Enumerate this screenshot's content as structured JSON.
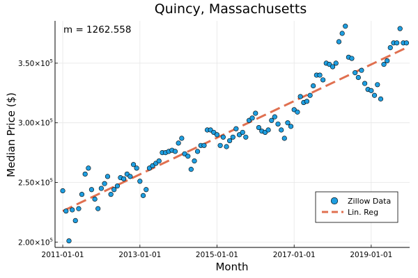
{
  "chart_data": {
    "type": "scatter",
    "title": "Quincy, Massachusetts",
    "xlabel": "Month",
    "ylabel": "Median Price ($)",
    "annotation": "m = 1262.558",
    "x_ticks": [
      "2011-01-01",
      "2013-01-01",
      "2015-01-01",
      "2017-01-01",
      "2019-01-01"
    ],
    "y_ticks": [
      {
        "value": 200000,
        "mantissa": "2.00×10",
        "exponent": "5"
      },
      {
        "value": 250000,
        "mantissa": "2.50×10",
        "exponent": "5"
      },
      {
        "value": 300000,
        "mantissa": "3.00×10",
        "exponent": "5"
      },
      {
        "value": 350000,
        "mantissa": "3.50×10",
        "exponent": "5"
      }
    ],
    "xlim": [
      "2010-10-20",
      "2019-12-31"
    ],
    "ylim": [
      195500,
      385500
    ],
    "grid": true,
    "legend_position": "bottom-right",
    "colors": {
      "points": "#1f9ee0",
      "point_edge": "#000000",
      "regression": "#e07050"
    },
    "series": [
      {
        "name": "Zillow Data",
        "kind": "scatter",
        "x": [
          "2011-01",
          "2011-02",
          "2011-03",
          "2011-04",
          "2011-05",
          "2011-06",
          "2011-07",
          "2011-08",
          "2011-09",
          "2011-10",
          "2011-11",
          "2011-12",
          "2012-01",
          "2012-02",
          "2012-03",
          "2012-04",
          "2012-05",
          "2012-06",
          "2012-07",
          "2012-08",
          "2012-09",
          "2012-10",
          "2012-11",
          "2012-12",
          "2013-01",
          "2013-02",
          "2013-03",
          "2013-04",
          "2013-05",
          "2013-06",
          "2013-07",
          "2013-08",
          "2013-09",
          "2013-10",
          "2013-11",
          "2013-12",
          "2014-01",
          "2014-02",
          "2014-03",
          "2014-04",
          "2014-05",
          "2014-06",
          "2014-07",
          "2014-08",
          "2014-09",
          "2014-10",
          "2014-11",
          "2014-12",
          "2015-01",
          "2015-02",
          "2015-03",
          "2015-04",
          "2015-05",
          "2015-06",
          "2015-07",
          "2015-08",
          "2015-09",
          "2015-10",
          "2015-11",
          "2015-12",
          "2016-01",
          "2016-02",
          "2016-03",
          "2016-04",
          "2016-05",
          "2016-06",
          "2016-07",
          "2016-08",
          "2016-09",
          "2016-10",
          "2016-11",
          "2016-12",
          "2017-01",
          "2017-02",
          "2017-03",
          "2017-04",
          "2017-05",
          "2017-06",
          "2017-07",
          "2017-08",
          "2017-09",
          "2017-10",
          "2017-11",
          "2017-12",
          "2018-01",
          "2018-02",
          "2018-03",
          "2018-04",
          "2018-05",
          "2018-06",
          "2018-07",
          "2018-08",
          "2018-09",
          "2018-10",
          "2018-11",
          "2018-12",
          "2019-01",
          "2019-02",
          "2019-03",
          "2019-04",
          "2019-05",
          "2019-06",
          "2019-07",
          "2019-08",
          "2019-09",
          "2019-10",
          "2019-11",
          "2019-12"
        ],
        "y": [
          243000,
          226000,
          201000,
          227000,
          218000,
          228000,
          240000,
          257000,
          262000,
          244000,
          236000,
          228000,
          245000,
          249000,
          255000,
          240000,
          244000,
          247000,
          254000,
          253000,
          257000,
          255000,
          265000,
          262000,
          251000,
          239000,
          244000,
          262000,
          264000,
          266000,
          268000,
          275000,
          275000,
          276000,
          277000,
          276000,
          283000,
          287000,
          274000,
          272000,
          261000,
          268000,
          276000,
          281000,
          281000,
          294000,
          294000,
          292000,
          290000,
          281000,
          288000,
          280000,
          285000,
          288000,
          295000,
          290000,
          292000,
          288000,
          302000,
          304000,
          308000,
          296000,
          293000,
          292000,
          294000,
          302000,
          305000,
          299000,
          294000,
          287000,
          300000,
          297000,
          311000,
          309000,
          322000,
          317000,
          318000,
          323000,
          331000,
          340000,
          340000,
          336000,
          350000,
          349000,
          347000,
          350000,
          368000,
          375000,
          381000,
          355000,
          354000,
          342000,
          338000,
          344000,
          333000,
          328000,
          327000,
          323000,
          332000,
          320000,
          349000,
          352000,
          363000,
          367000,
          367000,
          379000,
          367000,
          367000
        ]
      },
      {
        "name": "Lin. Reg",
        "kind": "line",
        "x": [
          "2011-01",
          "2019-12"
        ],
        "y": [
          226000,
          363000
        ]
      }
    ]
  }
}
